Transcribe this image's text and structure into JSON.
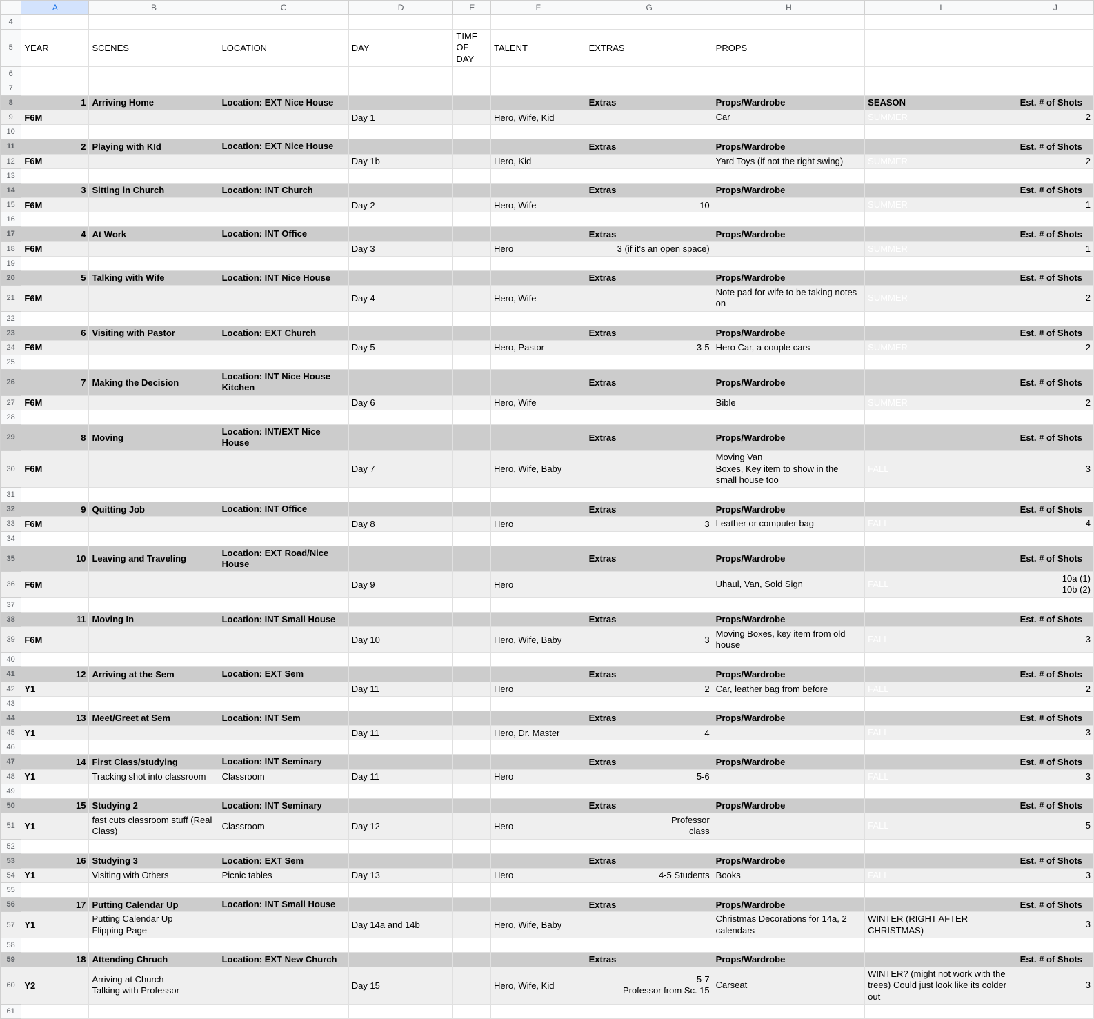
{
  "columns": {
    "rh": "",
    "A": "A",
    "B": "B",
    "C": "C",
    "D": "D",
    "E": "E",
    "F": "F",
    "G": "G",
    "H": "H",
    "I": "I",
    "J": "J"
  },
  "labelsRow": {
    "A": "YEAR",
    "B": "SCENES",
    "C": "LOCATION",
    "D": "DAY",
    "E": "TIME OF DAY",
    "F": "TALENT",
    "G": "EXTRAS",
    "H": "PROPS"
  },
  "sectionLabels": {
    "extras": "Extras",
    "props": "Props/Wardrobe",
    "season": "SEASON",
    "shots": "Est. # of Shots"
  },
  "scenes": [
    {
      "n": "1",
      "title": "Arriving Home",
      "loc": "Location: EXT Nice House",
      "seasonHdr": "SEASON",
      "year": "F6M",
      "day": "Day 1",
      "talent": "Hero, Wife, Kid",
      "extras": "",
      "props": "Car",
      "season": "SUMMER",
      "sClass": "summer",
      "shots": "2",
      "r": [
        "8",
        "9",
        "10"
      ]
    },
    {
      "n": "2",
      "title": "Playing with KId",
      "loc": "Location: EXT Nice House",
      "year": "F6M",
      "day": "Day 1b",
      "talent": "Hero, Kid",
      "extras": "",
      "props": "Yard Toys (if not the right swing)",
      "season": "SUMMER",
      "sClass": "summer",
      "shots": "2",
      "r": [
        "11",
        "12",
        "13"
      ]
    },
    {
      "n": "3",
      "title": "Sitting in Church",
      "loc": "Location: INT Church",
      "year": "F6M",
      "day": "Day 2",
      "talent": "Hero, Wife",
      "extras": "10",
      "props": "",
      "season": "SUMMER",
      "sClass": "summer",
      "shots": "1",
      "r": [
        "14",
        "15",
        "16"
      ]
    },
    {
      "n": "4",
      "title": "At Work",
      "loc": "Location: INT Office",
      "year": "F6M",
      "day": "Day 3",
      "talent": "Hero",
      "extras": "3 (if it's an open space)",
      "props": "",
      "season": "SUMMER",
      "sClass": "summer",
      "shots": "1",
      "r": [
        "17",
        "18",
        "19"
      ]
    },
    {
      "n": "5",
      "title": "Talking with Wife",
      "loc": "Location: INT Nice House",
      "year": "F6M",
      "day": "Day 4",
      "talent": "Hero, Wife",
      "extras": "",
      "props": "Note pad for wife to be taking notes on",
      "season": "SUMMER",
      "sClass": "summer",
      "shots": "2",
      "r": [
        "20",
        "21",
        "22"
      ],
      "tall": true
    },
    {
      "n": "6",
      "title": "Visiting with Pastor",
      "loc": "Location: EXT Church",
      "year": "F6M",
      "day": "Day 5",
      "talent": "Hero, Pastor",
      "extras": "3-5",
      "props": "Hero Car, a couple cars",
      "season": "SUMMER",
      "sClass": "summer",
      "shots": "2",
      "r": [
        "23",
        "24",
        "25"
      ]
    },
    {
      "n": "7",
      "title": "Making the Decision",
      "loc": "Location: INT Nice House Kitchen",
      "year": "F6M",
      "day": "Day 6",
      "talent": "Hero, Wife",
      "extras": "",
      "props": "Bible",
      "season": "SUMMER",
      "sClass": "summer",
      "shots": "2",
      "r": [
        "26",
        "27",
        "28"
      ],
      "hdrTall": true
    },
    {
      "n": "8",
      "title": "Moving",
      "loc": "Location: INT/EXT Nice House",
      "year": "F6M",
      "day": "Day 7",
      "talent": "Hero, Wife, Baby",
      "extras": "",
      "props": "Moving Van\nBoxes, Key item to show in the small house too",
      "season": "FALL",
      "sClass": "fall",
      "shots": "3",
      "r": [
        "29",
        "30",
        "31"
      ],
      "hdrTall": true,
      "tall": true
    },
    {
      "n": "9",
      "title": "Quitting Job",
      "loc": "Location: INT Office",
      "year": "F6M",
      "day": "Day 8",
      "talent": "Hero",
      "extras": "3",
      "props": "Leather or computer bag",
      "season": "FALL",
      "sClass": "fall",
      "shots": "4",
      "r": [
        "32",
        "33",
        "34"
      ]
    },
    {
      "n": "10",
      "title": "Leaving and Traveling",
      "loc": "Location: EXT Road/Nice House",
      "year": "F6M",
      "day": "Day 9",
      "talent": "Hero",
      "extras": "",
      "props": "Uhaul, Van, Sold Sign",
      "season": "FALL",
      "sClass": "fall",
      "shots": "10a (1)\n10b (2)",
      "r": [
        "35",
        "36",
        "37"
      ],
      "hdrTall": true,
      "tall": true
    },
    {
      "n": "11",
      "title": "Moving In",
      "loc": "Location: INT Small House",
      "year": "F6M",
      "day": "Day 10",
      "talent": "Hero, Wife, Baby",
      "extras": "3",
      "props": "Moving Boxes, key item from old house",
      "season": "FALL",
      "sClass": "fall",
      "shots": "3",
      "r": [
        "38",
        "39",
        "40"
      ],
      "tall": true
    },
    {
      "n": "12",
      "title": "Arriving at the Sem",
      "loc": "Location: EXT Sem",
      "year": "Y1",
      "day": "Day 11",
      "talent": "Hero",
      "extras": "2",
      "props": "Car, leather bag from before",
      "season": "FALL",
      "sClass": "fall",
      "shots": "2",
      "r": [
        "41",
        "42",
        "43"
      ]
    },
    {
      "n": "13",
      "title": "Meet/Greet at Sem",
      "loc": "Location: INT Sem",
      "year": "Y1",
      "day": "Day 11",
      "talent": "Hero, Dr. Master",
      "extras": "4",
      "props": "",
      "season": "FALL",
      "sClass": "fall",
      "shots": "3",
      "r": [
        "44",
        "45",
        "46"
      ]
    },
    {
      "n": "14",
      "title": "First Class/studying",
      "loc": "Location: INT Seminary",
      "year": "Y1",
      "day": "Day 11",
      "talent": "Hero",
      "extras": "5-6",
      "props": "",
      "season": "FALL",
      "sClass": "fall",
      "shots": "3",
      "bnote": "Tracking shot into classroom",
      "cnote": "Classroom",
      "r": [
        "47",
        "48",
        "49"
      ]
    },
    {
      "n": "15",
      "title": "Studying 2",
      "loc": "Location: INT Seminary",
      "year": "Y1",
      "day": "Day 12",
      "talent": "Hero",
      "extras": "Professor\nclass",
      "props": "",
      "season": "FALL",
      "sClass": "fall",
      "shots": "5",
      "bnote": "fast cuts classroom stuff (Real Class)",
      "cnote": "Classroom",
      "r": [
        "50",
        "51",
        "52"
      ],
      "tall": true
    },
    {
      "n": "16",
      "title": "Studying 3",
      "loc": "Location: EXT Sem",
      "year": "Y1",
      "day": "Day 13",
      "talent": "Hero",
      "extras": "4-5 Students",
      "props": "Books",
      "season": "FALL",
      "sClass": "fall",
      "shots": "3",
      "bnote": "Visiting with Others",
      "cnote": "Picnic tables",
      "r": [
        "53",
        "54",
        "55"
      ]
    },
    {
      "n": "17",
      "title": "Putting Calendar Up",
      "loc": "Location: INT Small House",
      "year": "Y1",
      "day": "Day 14a  and 14b",
      "talent": "Hero, Wife, Baby",
      "extras": "",
      "props": "Christmas Decorations for 14a, 2 calendars",
      "season": "WINTER (RIGHT AFTER CHRISTMAS)",
      "sClass": "winter",
      "shots": "3",
      "bnote": "Putting Calendar Up\nFlipping Page",
      "r": [
        "56",
        "57",
        "58"
      ],
      "tall": true
    },
    {
      "n": "18",
      "title": "Attending Chruch",
      "loc": "Location: EXT New Church",
      "year": "Y2",
      "day": "Day 15",
      "talent": "Hero, Wife, Kid",
      "extras": "5-7\nProfessor from Sc. 15",
      "props": "Carseat",
      "season": "WINTER? (might not work with the trees) Could just look like its colder out",
      "sClass": "winter",
      "shots": "3",
      "bnote": "Arriving at Church\nTalking with Professor",
      "r": [
        "59",
        "60",
        "61"
      ],
      "tall3": true
    }
  ]
}
